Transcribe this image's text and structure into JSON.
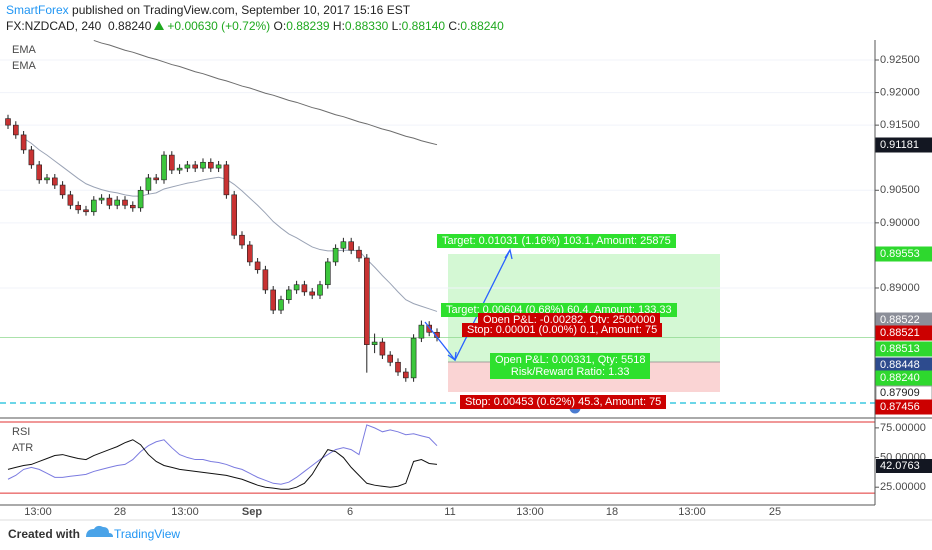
{
  "header": {
    "author": "SmartForex",
    "published": "published on TradingView.com, September 10, 2017 15:16 EST",
    "symbol": "FX:NZDCAD, 240",
    "last": "0.88240",
    "change": "+0.00630 (+0.72%)",
    "ohlc": [
      {
        "label": "O:",
        "value": "0.88239"
      },
      {
        "label": "H:",
        "value": "0.88330"
      },
      {
        "label": "L:",
        "value": "0.88140"
      },
      {
        "label": "C:",
        "value": "0.88240"
      }
    ]
  },
  "chart_data": {
    "type": "candlestick",
    "up_color": "#3cc63c",
    "down_color": "#c83232",
    "ylim": [
      0.87004,
      0.92807
    ],
    "yticks": [
      {
        "value": 0.925,
        "label": "0.92500"
      },
      {
        "value": 0.92,
        "label": "0.92000"
      },
      {
        "value": 0.915,
        "label": "0.91500"
      },
      {
        "value": 0.905,
        "label": "0.90500"
      },
      {
        "value": 0.9,
        "label": "0.90000"
      },
      {
        "value": 0.89,
        "label": "0.89000"
      }
    ],
    "candles": [
      [
        0.916,
        0.9166,
        0.9144,
        0.915
      ],
      [
        0.915,
        0.9156,
        0.9129,
        0.9135
      ],
      [
        0.9135,
        0.9141,
        0.9106,
        0.9112
      ],
      [
        0.9112,
        0.9118,
        0.9083,
        0.9089
      ],
      [
        0.9089,
        0.9095,
        0.906,
        0.9066
      ],
      [
        0.9066,
        0.9075,
        0.906,
        0.9069
      ],
      [
        0.9069,
        0.9075,
        0.9052,
        0.9058
      ],
      [
        0.9058,
        0.9064,
        0.9037,
        0.9043
      ],
      [
        0.9043,
        0.9049,
        0.9021,
        0.9027
      ],
      [
        0.9027,
        0.9033,
        0.9014,
        0.902
      ],
      [
        0.902,
        0.9026,
        0.9011,
        0.9017
      ],
      [
        0.9017,
        0.9041,
        0.9011,
        0.9035
      ],
      [
        0.9035,
        0.9044,
        0.9029,
        0.9038
      ],
      [
        0.9038,
        0.9044,
        0.9021,
        0.9027
      ],
      [
        0.9027,
        0.9041,
        0.9021,
        0.9035
      ],
      [
        0.9035,
        0.9041,
        0.9021,
        0.9027
      ],
      [
        0.9027,
        0.9033,
        0.9017,
        0.9023
      ],
      [
        0.9023,
        0.9056,
        0.9017,
        0.905
      ],
      [
        0.905,
        0.9075,
        0.9044,
        0.9069
      ],
      [
        0.9069,
        0.9075,
        0.906,
        0.9066
      ],
      [
        0.9066,
        0.911,
        0.906,
        0.9104
      ],
      [
        0.9104,
        0.911,
        0.9075,
        0.9081
      ],
      [
        0.9081,
        0.909,
        0.9075,
        0.9084
      ],
      [
        0.9084,
        0.9095,
        0.9078,
        0.9089
      ],
      [
        0.9089,
        0.9095,
        0.9078,
        0.9084
      ],
      [
        0.9084,
        0.9099,
        0.9078,
        0.9093
      ],
      [
        0.9093,
        0.9099,
        0.9078,
        0.9084
      ],
      [
        0.9084,
        0.9095,
        0.9078,
        0.9089
      ],
      [
        0.9089,
        0.9095,
        0.9037,
        0.9043
      ],
      [
        0.9043,
        0.9049,
        0.8975,
        0.8981
      ],
      [
        0.8981,
        0.8987,
        0.896,
        0.8966
      ],
      [
        0.8966,
        0.8972,
        0.8934,
        0.894
      ],
      [
        0.894,
        0.8946,
        0.8922,
        0.8928
      ],
      [
        0.8928,
        0.8934,
        0.8891,
        0.8897
      ],
      [
        0.8897,
        0.8903,
        0.886,
        0.8866
      ],
      [
        0.8866,
        0.8888,
        0.886,
        0.8882
      ],
      [
        0.8882,
        0.8903,
        0.8876,
        0.8897
      ],
      [
        0.8897,
        0.8911,
        0.8891,
        0.8905
      ],
      [
        0.8905,
        0.8911,
        0.8888,
        0.8894
      ],
      [
        0.8894,
        0.89,
        0.8883,
        0.8889
      ],
      [
        0.8889,
        0.8911,
        0.8883,
        0.8905
      ],
      [
        0.8905,
        0.8946,
        0.8899,
        0.894
      ],
      [
        0.894,
        0.8967,
        0.8934,
        0.8961
      ],
      [
        0.8961,
        0.8977,
        0.8955,
        0.8971
      ],
      [
        0.8971,
        0.8977,
        0.8952,
        0.8958
      ],
      [
        0.8958,
        0.8964,
        0.894,
        0.8946
      ],
      [
        0.8946,
        0.8952,
        0.877,
        0.8813
      ],
      [
        0.8813,
        0.883,
        0.88,
        0.8817
      ],
      [
        0.8817,
        0.8823,
        0.8791,
        0.8797
      ],
      [
        0.8797,
        0.8803,
        0.878,
        0.8786
      ],
      [
        0.8786,
        0.8792,
        0.8765,
        0.8771
      ],
      [
        0.8771,
        0.8777,
        0.8756,
        0.8762
      ],
      [
        0.8762,
        0.8829,
        0.8756,
        0.8823
      ],
      [
        0.8823,
        0.885,
        0.8817,
        0.8843
      ],
      [
        0.8843,
        0.8849,
        0.8826,
        0.8832
      ],
      [
        0.8832,
        0.8838,
        0.8818,
        0.8824
      ]
    ],
    "ema": [
      {
        "name": "EMA",
        "color": "#9aa3b5",
        "values": [
          null,
          null,
          0.913,
          0.9122,
          0.9112,
          0.9104,
          0.9095,
          0.9086,
          0.9077,
          0.9068,
          0.906,
          0.9055,
          0.9051,
          0.9048,
          0.9046,
          0.9043,
          0.9041,
          0.9041,
          0.9044,
          0.9046,
          0.9052,
          0.9055,
          0.9058,
          0.9061,
          0.9063,
          0.9066,
          0.9068,
          0.907,
          0.9067,
          0.9059,
          0.9049,
          0.9038,
          0.9027,
          0.9015,
          0.9002,
          0.8992,
          0.8983,
          0.8977,
          0.897,
          0.8963,
          0.8959,
          0.8957,
          0.8957,
          0.8958,
          0.8958,
          0.8957,
          0.8944,
          0.8932,
          0.8919,
          0.8907,
          0.8894,
          0.8882,
          0.8876,
          0.8872,
          0.8868,
          0.8864
        ]
      },
      {
        "name": "EMA",
        "color": "#6d6d6d",
        "values": [
          null,
          null,
          null,
          null,
          null,
          null,
          null,
          null,
          null,
          null,
          null,
          0.928,
          0.9276,
          0.9273,
          0.9269,
          0.9265,
          0.9262,
          0.9258,
          0.9254,
          0.9251,
          0.9247,
          0.9243,
          0.924,
          0.9236,
          0.9232,
          0.9229,
          0.9225,
          0.9221,
          0.9218,
          0.9214,
          0.921,
          0.9207,
          0.9203,
          0.9199,
          0.9196,
          0.9192,
          0.9188,
          0.9185,
          0.9181,
          0.9177,
          0.9174,
          0.917,
          0.9166,
          0.9163,
          0.9159,
          0.9155,
          0.9152,
          0.9148,
          0.9144,
          0.9141,
          0.9137,
          0.9133,
          0.913,
          0.9126,
          0.9123,
          0.912
        ]
      }
    ],
    "indicator": {
      "type": "line",
      "ylim": [
        10,
        83.33
      ],
      "yticks": [
        {
          "value": 75,
          "label": "75.00000"
        },
        {
          "value": 50,
          "label": "50.00000"
        },
        {
          "value": 25,
          "label": "25.00000"
        }
      ],
      "bands": [
        80,
        20
      ],
      "band_color": "#e03030",
      "flag": {
        "label": "42.0763",
        "color": "#131722"
      },
      "series": [
        {
          "name": "RSI",
          "color": "#7b7be0",
          "values": [
            31.7,
            35,
            40,
            41.7,
            40,
            36.7,
            33.3,
            33.3,
            34.2,
            35,
            35.8,
            38.3,
            40,
            41.7,
            43.3,
            44.2,
            48.3,
            55,
            60,
            63.3,
            65,
            58.3,
            52.5,
            50,
            48.3,
            48.3,
            46.7,
            45.8,
            44.2,
            41.7,
            40,
            36.7,
            33.3,
            30.8,
            28.3,
            27.5,
            29.2,
            33.3,
            38.3,
            43.3,
            48.3,
            52.5,
            56.7,
            58.3,
            56.7,
            52.5,
            77.5,
            75,
            71.7,
            73.3,
            71.7,
            69.2,
            70,
            68.3,
            66.7,
            60
          ]
        },
        {
          "name": "ATR",
          "color": "#111111",
          "values": [
            40,
            41.7,
            43.3,
            44.2,
            46.7,
            49.2,
            51.7,
            52.5,
            50.8,
            49.2,
            48.3,
            51.7,
            54.2,
            56.7,
            59.2,
            62.5,
            65,
            60.8,
            52.5,
            46.7,
            43.3,
            41.7,
            40,
            39.2,
            38.3,
            37.5,
            36.7,
            35.8,
            35,
            33.3,
            31.7,
            29.2,
            26.7,
            25,
            24.2,
            23.3,
            23.3,
            25,
            28.3,
            35.8,
            46.7,
            56.7,
            55,
            50,
            41.7,
            35,
            28.3,
            26.7,
            25.8,
            25,
            25.8,
            28.3,
            46.7,
            48.3,
            45,
            44.2
          ]
        }
      ]
    }
  },
  "price_flags": [
    {
      "label": "0.91181",
      "color": "#131722"
    },
    {
      "label": "0.89553",
      "color": "#2ed82e"
    },
    {
      "label": "0.88522",
      "color": "#8c8f99"
    },
    {
      "label": "0.88521",
      "color": "#cc0000"
    },
    {
      "label": "0.88513",
      "color": "#2ed82e"
    },
    {
      "label": "0.88448",
      "color": "#2d4b8e"
    },
    {
      "label": "0.88240",
      "color": "#2ed82e"
    },
    {
      "label": "0.87909",
      "color": "#ffffff"
    },
    {
      "label": "0.87456",
      "color": "#cc0000"
    }
  ],
  "x_labels": [
    "13:00",
    "28",
    "13:00",
    "Sep",
    "6",
    "11",
    "13:00",
    "18",
    "13:00",
    "25"
  ],
  "overlays": [
    "Target: 0.01031 (1.16%) 103.1, Amount: 25875",
    "Target: 0.00604 (0.68%) 60.4, Amount: 133.33",
    "Open P&L: -0.00282, Qty: 2500000",
    "Stop: 0.00001 (0.00%) 0.1, Amount: 75",
    "Open P&L: 0.00331, Qty: 5518",
    "Risk/Reward Ratio: 1.33",
    "Stop: 0.00453 (0.62%) 45.3, Amount: 75"
  ],
  "footer": {
    "created": "Created with",
    "brand": "TradingView"
  }
}
